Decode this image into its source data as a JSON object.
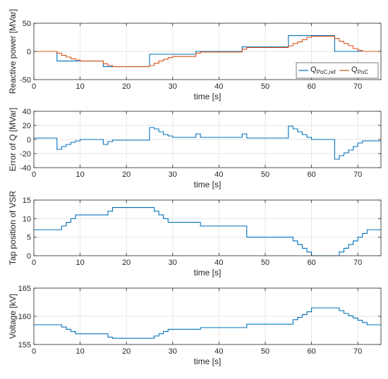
{
  "colors": {
    "blue": "#0072bd",
    "orange": "#d95319",
    "grid": "#e6e6e6",
    "axis": "#262626"
  },
  "chart_data": [
    {
      "type": "line",
      "title": "",
      "xlabel": "time [s]",
      "ylabel": "Reactive power [MVar]",
      "xlim": [
        0,
        75
      ],
      "ylim": [
        -50,
        50
      ],
      "xticks": [
        0,
        10,
        20,
        30,
        40,
        50,
        60,
        70
      ],
      "yticks": [
        -50,
        0,
        50
      ],
      "grid": true,
      "legend": {
        "placement": "bottom-right",
        "entries": [
          {
            "base": "Q",
            "sub": "PoC,ref"
          },
          {
            "base": "Q",
            "sub": "PoC"
          }
        ]
      },
      "series": [
        {
          "name": "Q_PoC,ref",
          "color": "blue",
          "x": [
            0,
            5,
            5,
            15,
            15,
            25,
            25,
            35,
            35,
            45,
            45,
            55,
            55,
            65,
            65,
            75
          ],
          "y": [
            0,
            0,
            -17,
            -17,
            -27,
            -27,
            -5,
            -5,
            0,
            0,
            8,
            8,
            28,
            28,
            0,
            0
          ]
        },
        {
          "name": "Q_PoC",
          "color": "orange",
          "x": [
            0,
            5,
            5,
            6,
            6,
            7,
            7,
            8,
            8,
            9,
            9,
            10,
            10,
            15,
            15,
            16,
            16,
            17,
            17,
            25,
            25,
            26,
            26,
            27,
            27,
            28,
            28,
            29,
            29,
            30,
            30,
            35,
            35,
            36,
            36,
            45,
            45,
            46,
            46,
            55,
            55,
            56,
            56,
            57,
            57,
            58,
            58,
            59,
            59,
            60,
            60,
            65,
            65,
            66,
            66,
            67,
            67,
            68,
            68,
            69,
            69,
            70,
            70,
            71,
            71,
            75
          ],
          "y": [
            0,
            0,
            -3,
            -3,
            -7,
            -7,
            -10,
            -10,
            -13,
            -13,
            -15,
            -15,
            -17,
            -17,
            -22,
            -22,
            -25,
            -25,
            -27,
            -27,
            -25,
            -25,
            -21,
            -21,
            -17,
            -17,
            -14,
            -14,
            -11,
            -11,
            -9,
            -9,
            -3,
            -3,
            -1,
            -1,
            4,
            4,
            7,
            7,
            10,
            10,
            14,
            14,
            17,
            17,
            21,
            21,
            25,
            25,
            27,
            27,
            23,
            23,
            18,
            18,
            14,
            14,
            10,
            10,
            5,
            5,
            2,
            2,
            0,
            0
          ]
        }
      ]
    },
    {
      "type": "line",
      "title": "",
      "xlabel": "time [s]",
      "ylabel": "Error of Q [MVar]",
      "xlim": [
        0,
        75
      ],
      "ylim": [
        -40,
        40
      ],
      "xticks": [
        0,
        10,
        20,
        30,
        40,
        50,
        60,
        70
      ],
      "yticks": [
        -40,
        -20,
        0,
        20,
        40
      ],
      "grid": true,
      "series": [
        {
          "name": "",
          "color": "blue",
          "x": [
            0,
            5,
            5,
            6,
            6,
            7,
            7,
            8,
            8,
            9,
            9,
            10,
            10,
            15,
            15,
            16,
            16,
            17,
            17,
            25,
            25,
            26,
            26,
            27,
            27,
            28,
            28,
            29,
            29,
            30,
            30,
            35,
            35,
            36,
            36,
            45,
            45,
            46,
            46,
            55,
            55,
            56,
            56,
            57,
            57,
            58,
            58,
            59,
            59,
            60,
            60,
            65,
            65,
            66,
            66,
            67,
            67,
            68,
            68,
            69,
            69,
            70,
            70,
            71,
            71,
            75
          ],
          "y": [
            2,
            2,
            -14,
            -14,
            -10,
            -10,
            -7,
            -7,
            -4,
            -4,
            -2,
            -2,
            0,
            0,
            -7,
            -7,
            -3,
            -3,
            -1,
            -1,
            17,
            17,
            15,
            15,
            11,
            11,
            7,
            7,
            5,
            5,
            3,
            3,
            8,
            8,
            3,
            3,
            8,
            8,
            2,
            2,
            19,
            19,
            15,
            15,
            11,
            11,
            7,
            7,
            3,
            3,
            0,
            0,
            -28,
            -28,
            -23,
            -23,
            -19,
            -19,
            -15,
            -15,
            -10,
            -10,
            -5,
            -5,
            -2,
            -2
          ]
        }
      ]
    },
    {
      "type": "line",
      "title": "",
      "xlabel": "time [s]",
      "ylabel": "Tap position of VSR",
      "xlim": [
        0,
        75
      ],
      "ylim": [
        0,
        15
      ],
      "xticks": [
        0,
        10,
        20,
        30,
        40,
        50,
        60,
        70
      ],
      "yticks": [
        0,
        5,
        10,
        15
      ],
      "grid": true,
      "series": [
        {
          "name": "",
          "color": "blue",
          "x": [
            0,
            6,
            6,
            7,
            7,
            8,
            8,
            9,
            9,
            10,
            10,
            16,
            16,
            17,
            17,
            26,
            26,
            27,
            27,
            28,
            28,
            29,
            29,
            30,
            30,
            36,
            36,
            46,
            46,
            56,
            56,
            57,
            57,
            58,
            58,
            59,
            59,
            60,
            60,
            66,
            66,
            67,
            67,
            68,
            68,
            69,
            69,
            70,
            70,
            71,
            71,
            72,
            72,
            73,
            73,
            75
          ],
          "y": [
            7,
            7,
            8,
            8,
            9,
            9,
            10,
            10,
            11,
            11,
            11,
            11,
            12,
            12,
            13,
            13,
            12,
            12,
            11,
            11,
            10,
            10,
            9,
            9,
            9,
            9,
            8,
            8,
            5,
            5,
            4,
            4,
            3,
            3,
            2,
            2,
            1,
            1,
            0,
            0,
            1,
            1,
            2,
            2,
            3,
            3,
            4,
            4,
            5,
            5,
            6,
            6,
            7,
            7,
            7,
            7
          ]
        }
      ]
    },
    {
      "type": "line",
      "title": "",
      "xlabel": "time [s]",
      "ylabel": "Voltage [kV]",
      "xlim": [
        0,
        75
      ],
      "ylim": [
        155,
        165
      ],
      "xticks": [
        0,
        10,
        20,
        30,
        40,
        50,
        60,
        70
      ],
      "yticks": [
        155,
        160,
        165
      ],
      "grid": true,
      "series": [
        {
          "name": "",
          "color": "blue",
          "x": [
            0,
            6,
            6,
            7,
            7,
            8,
            8,
            9,
            9,
            10,
            10,
            16,
            16,
            17,
            17,
            26,
            26,
            27,
            27,
            28,
            28,
            29,
            29,
            36,
            36,
            46,
            46,
            56,
            56,
            57,
            57,
            58,
            58,
            59,
            59,
            60,
            60,
            66,
            66,
            67,
            67,
            68,
            68,
            69,
            69,
            70,
            70,
            71,
            71,
            72,
            72,
            73,
            73,
            75
          ],
          "y": [
            158.5,
            158.5,
            158.1,
            158.1,
            157.7,
            157.7,
            157.3,
            157.3,
            156.9,
            156.9,
            156.9,
            156.9,
            156.3,
            156.3,
            156.1,
            156.1,
            156.5,
            156.5,
            156.9,
            156.9,
            157.3,
            157.3,
            157.7,
            157.7,
            158.0,
            158.0,
            158.6,
            158.6,
            159.4,
            159.4,
            159.8,
            159.8,
            160.3,
            160.3,
            160.8,
            160.8,
            161.5,
            161.5,
            161.0,
            161.0,
            160.5,
            160.5,
            160.1,
            160.1,
            159.7,
            159.7,
            159.3,
            159.3,
            158.9,
            158.9,
            158.5,
            158.5,
            158.5,
            158.5
          ]
        }
      ]
    }
  ]
}
